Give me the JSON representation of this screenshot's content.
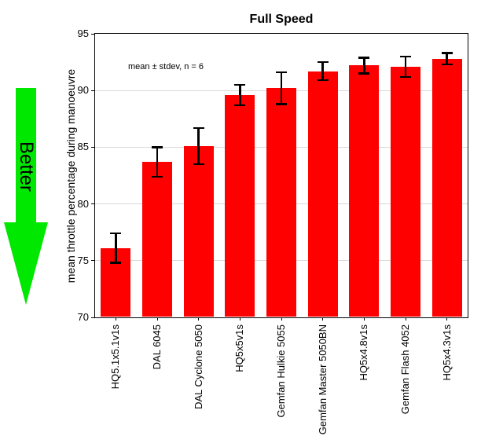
{
  "better_label": "Better",
  "arrow_color": "#00e800",
  "chart_data": {
    "type": "bar",
    "title": "Full Speed",
    "xlabel": "",
    "ylabel": "mean throttle percentage during manoeuvre",
    "annotation": "mean ± stdev, n = 6",
    "ylim": [
      70,
      95
    ],
    "yticks": [
      70,
      75,
      80,
      85,
      90,
      95
    ],
    "grid": true,
    "legend": "none",
    "bar_color": "#ff0000",
    "error_color": "#000000",
    "categories": [
      "HQ5.1x5.1v1s",
      "DAL 6045",
      "DAL Cyclone 5050",
      "HQ5x5v1s",
      "Gemfan Hulkie 5055",
      "Gemfan Master 5050BN",
      "HQ5x4.8v1s",
      "Gemfan Flash 4052",
      "HQ5x4.3v1s"
    ],
    "values": [
      76.1,
      83.7,
      85.1,
      89.6,
      90.2,
      91.7,
      92.2,
      92.1,
      92.8
    ],
    "errors": [
      1.3,
      1.3,
      1.6,
      0.9,
      1.4,
      0.8,
      0.7,
      0.9,
      0.5
    ]
  }
}
